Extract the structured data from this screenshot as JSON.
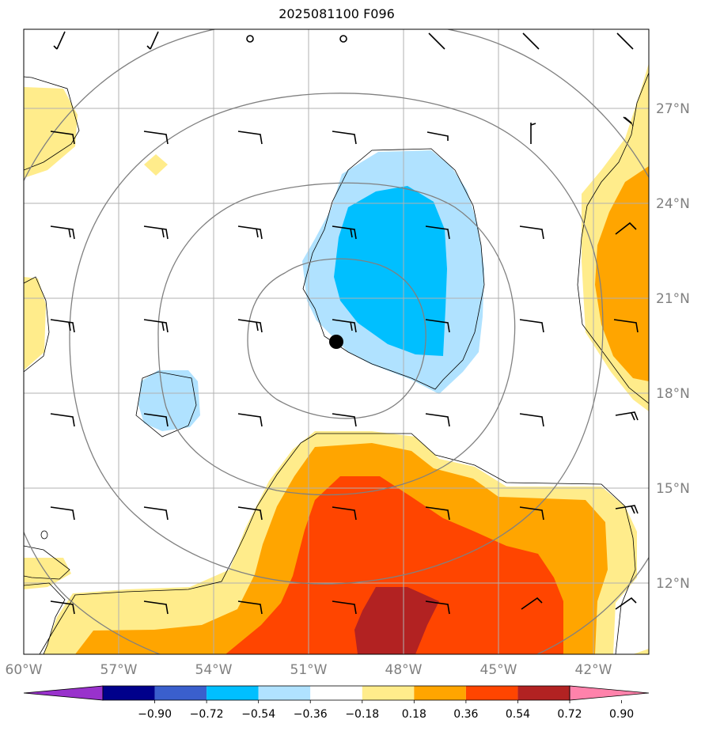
{
  "title": "2025081100 F096",
  "lon_ticks": [
    {
      "label": "60°W",
      "lon": -60
    },
    {
      "label": "57°W",
      "lon": -57
    },
    {
      "label": "54°W",
      "lon": -54
    },
    {
      "label": "51°W",
      "lon": -51
    },
    {
      "label": "48°W",
      "lon": -48
    },
    {
      "label": "45°W",
      "lon": -45
    },
    {
      "label": "42°W",
      "lon": -42
    }
  ],
  "lat_ticks": [
    {
      "label": "27°N",
      "lat": 27
    },
    {
      "label": "24°N",
      "lat": 24
    },
    {
      "label": "21°N",
      "lat": 21
    },
    {
      "label": "18°N",
      "lat": 18
    },
    {
      "label": "15°N",
      "lat": 15
    },
    {
      "label": "12°N",
      "lat": 12
    }
  ],
  "extent": {
    "lon_min": -60,
    "lon_max": -40.25,
    "lat_min": 9.75,
    "lat_max": 29.5
  },
  "colorbar": {
    "colors": [
      "#9932cc",
      "#00008b",
      "#3a5fcd",
      "#00bfff",
      "#b0e2ff",
      "#ffffff",
      "#ffec8b",
      "#ffa500",
      "#ff4500",
      "#b22222",
      "#ff82ab"
    ],
    "labels": [
      "−0.90",
      "−0.72",
      "−0.54",
      "−0.36",
      "−0.18",
      "0.18",
      "0.36",
      "0.54",
      "0.72",
      "0.90"
    ]
  },
  "center": {
    "lon": -50.2,
    "lat": 19.3
  },
  "colors": {
    "grid": "#b0b0b0",
    "ring": "#808080",
    "frame": "#000000",
    "tick_label": "#808080"
  }
}
